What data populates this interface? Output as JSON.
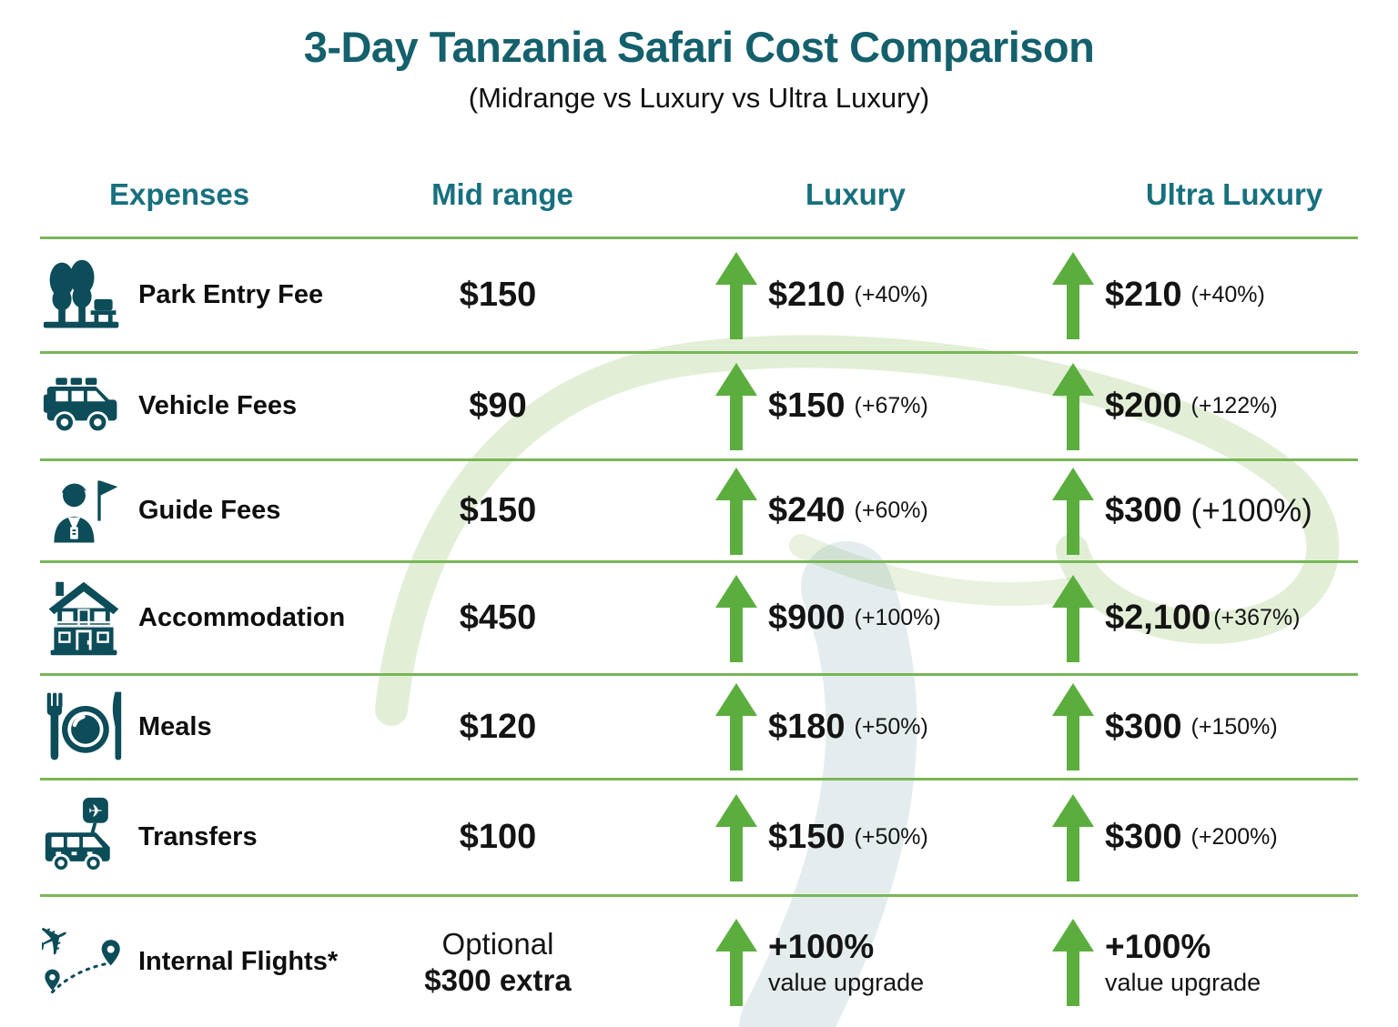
{
  "header": {
    "title": "3-Day Tanzania Safari Cost Comparison",
    "subtitle": "(Midrange vs Luxury vs Ultra Luxury)"
  },
  "columns": [
    "Expenses",
    "Mid range",
    "Luxury",
    "Ultra Luxury"
  ],
  "rows": [
    {
      "icon": "park-trees-icon",
      "label": "Park Entry Fee",
      "mid": {
        "value": "$150"
      },
      "luxury": {
        "price": "$210",
        "pct": "(+40%)"
      },
      "ultra": {
        "price": "$210",
        "pct": "(+40%)"
      }
    },
    {
      "icon": "safari-jeep-icon",
      "label": "Vehicle Fees",
      "mid": {
        "value": "$90"
      },
      "luxury": {
        "price": "$150",
        "pct": "(+67%)"
      },
      "ultra": {
        "price": "$200",
        "pct": "(+122%)"
      }
    },
    {
      "icon": "tour-guide-icon",
      "label": "Guide Fees",
      "mid": {
        "value": "$150"
      },
      "luxury": {
        "price": "$240",
        "pct": "(+60%)"
      },
      "ultra": {
        "price": "$300",
        "pct": "(+100%)",
        "pct_large": true
      }
    },
    {
      "icon": "lodge-house-icon",
      "label": "Accommodation",
      "mid": {
        "value": "$450"
      },
      "luxury": {
        "price": "$900",
        "pct": "(+100%)"
      },
      "ultra": {
        "price": "$2,100",
        "pct": "(+367%)",
        "pct_tight": true
      }
    },
    {
      "icon": "meals-icon",
      "label": "Meals",
      "mid": {
        "value": "$120"
      },
      "luxury": {
        "price": "$180",
        "pct": "(+50%)"
      },
      "ultra": {
        "price": "$300",
        "pct": "(+150%)"
      }
    },
    {
      "icon": "shuttle-bus-icon",
      "label": "Transfers",
      "mid": {
        "value": "$100"
      },
      "luxury": {
        "price": "$150",
        "pct": "(+50%)"
      },
      "ultra": {
        "price": "$300",
        "pct": "(+200%)"
      }
    },
    {
      "icon": "flight-route-icon",
      "label": "Internal Flights*",
      "mid": {
        "value": "Optional",
        "value2": "$300 extra"
      },
      "luxury": {
        "price": "+100%",
        "sub": "value upgrade"
      },
      "ultra": {
        "price": "+100%",
        "sub": "value upgrade"
      }
    }
  ],
  "colors": {
    "title_teal": "#14606C",
    "header_teal": "#17707E",
    "icon_teal": "#0D4C59",
    "arrow_green": "#5BAE3E",
    "divider_green": "#79B657",
    "text_dark": "#141414"
  },
  "chart_data": {
    "type": "table",
    "title": "3-Day Tanzania Safari Cost Comparison",
    "subtitle": "(Midrange vs Luxury vs Ultra Luxury)",
    "columns": [
      "Expenses",
      "Mid range",
      "Luxury",
      "Ultra Luxury"
    ],
    "rows": [
      [
        "Park Entry Fee",
        "$150",
        "$210 (+40%)",
        "$210 (+40%)"
      ],
      [
        "Vehicle Fees",
        "$90",
        "$150 (+67%)",
        "$200 (+122%)"
      ],
      [
        "Guide Fees",
        "$150",
        "$240 (+60%)",
        "$300 (+100%)"
      ],
      [
        "Accommodation",
        "$450",
        "$900 (+100%)",
        "$2,100 (+367%)"
      ],
      [
        "Meals",
        "$120",
        "$180 (+50%)",
        "$300 (+150%)"
      ],
      [
        "Transfers",
        "$100",
        "$150 (+50%)",
        "$300 (+200%)"
      ],
      [
        "Internal Flights*",
        "Optional $300 extra",
        "+100% value upgrade",
        "+100% value upgrade"
      ]
    ],
    "notes": "Green up arrows mark cost increases vs Mid range; Internal Flights row shows optional $300 extra and +100% value upgrade."
  }
}
